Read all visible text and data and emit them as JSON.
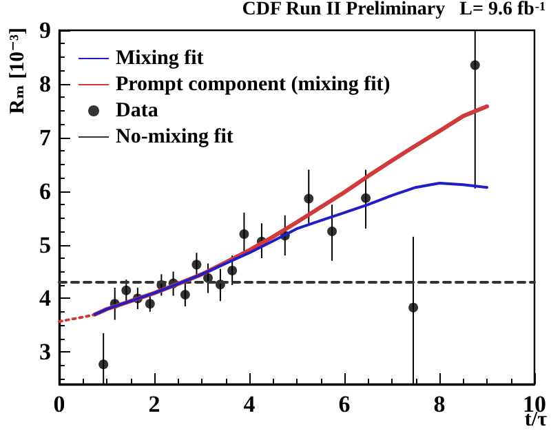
{
  "chart_data": {
    "type": "line",
    "title": "CDF Run II Preliminary   L= 9.6 fb$^{-1}$",
    "xlabel": "t/τ",
    "ylabel": "Rₘ [10⁻³]",
    "xlim": [
      0,
      10
    ],
    "xticks": [
      0,
      2,
      4,
      6,
      8,
      10
    ],
    "ylim": [
      2.4,
      9
    ],
    "yticks": [
      3,
      4,
      5,
      6,
      7,
      8,
      9
    ],
    "grid": false,
    "legend": "top left",
    "series": [
      {
        "name": "Mixing fit",
        "color": "#1f1fc8",
        "line_style": "solid",
        "marker": "none",
        "x": [
          0.75,
          1,
          1.5,
          2,
          2.5,
          3,
          3.5,
          4,
          4.5,
          5,
          5.5,
          6,
          6.5,
          7,
          7.5,
          8,
          8.5,
          9
        ],
        "values": [
          3.7,
          3.8,
          3.95,
          4.1,
          4.27,
          4.45,
          4.65,
          4.85,
          5.07,
          5.3,
          5.45,
          5.6,
          5.75,
          5.92,
          6.07,
          6.15,
          6.12,
          6.07
        ]
      },
      {
        "name": "Prompt component (mixing fit)",
        "color": "#d03a3a",
        "line_style": "solid",
        "marker": "none",
        "x": [
          0.75,
          1,
          1.5,
          2,
          2.5,
          3,
          3.5,
          4,
          4.5,
          5,
          5.5,
          6,
          6.5,
          7,
          7.5,
          8,
          8.5,
          9
        ],
        "values": [
          3.7,
          3.8,
          3.95,
          4.1,
          4.27,
          4.45,
          4.67,
          4.9,
          5.15,
          5.42,
          5.7,
          5.98,
          6.28,
          6.57,
          6.85,
          7.12,
          7.4,
          7.58
        ]
      },
      {
        "color": "#d03a3a",
        "line_style": "dotted",
        "marker": "none",
        "x": [
          0,
          0.25,
          0.5,
          0.75
        ],
        "values": [
          3.57,
          3.61,
          3.65,
          3.7
        ]
      },
      {
        "name": "Data",
        "type": "scatter",
        "color": "#000000",
        "marker": "circle",
        "x": [
          0.93,
          1.17,
          1.41,
          1.65,
          1.91,
          2.15,
          2.4,
          2.65,
          2.89,
          3.13,
          3.39,
          3.64,
          3.89,
          4.26,
          4.75,
          5.25,
          5.74,
          6.45,
          7.45,
          8.75
        ],
        "values": [
          2.77,
          3.9,
          4.15,
          4.0,
          3.9,
          4.25,
          4.28,
          4.07,
          4.63,
          4.38,
          4.26,
          4.52,
          5.2,
          5.06,
          5.17,
          5.86,
          5.25,
          5.87,
          3.83,
          8.35
        ],
        "errors": [
          [
            2.4,
            3.35
          ],
          [
            3.6,
            4.2
          ],
          [
            3.95,
            4.35
          ],
          [
            3.8,
            4.2
          ],
          [
            3.75,
            4.1
          ],
          [
            4.05,
            4.45
          ],
          [
            4.05,
            4.5
          ],
          [
            3.85,
            4.3
          ],
          [
            4.4,
            4.85
          ],
          [
            4.1,
            4.65
          ],
          [
            3.95,
            4.55
          ],
          [
            4.25,
            4.8
          ],
          [
            4.8,
            5.6
          ],
          [
            4.75,
            5.4
          ],
          [
            4.8,
            5.55
          ],
          [
            5.4,
            6.4
          ],
          [
            4.7,
            5.75
          ],
          [
            5.3,
            6.4
          ],
          [
            2.4,
            5.15
          ],
          [
            6.05,
            9
          ]
        ]
      },
      {
        "name": "No-mixing fit",
        "color": "#333333",
        "line_style": "dashed",
        "marker": "none",
        "x": [
          0,
          10
        ],
        "values": [
          4.3,
          4.3
        ]
      }
    ]
  }
}
